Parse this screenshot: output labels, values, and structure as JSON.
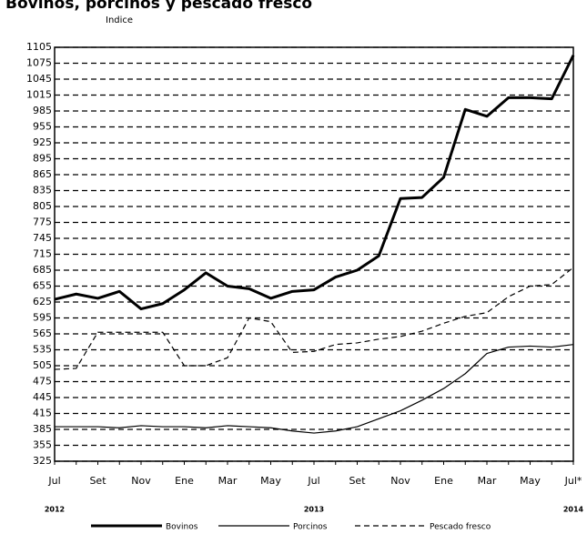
{
  "chart_data": {
    "type": "line",
    "title": "Bovinos, porcinos y pescado fresco",
    "y_label": "Indice",
    "categories": [
      "Jul",
      null,
      "Set",
      null,
      "Nov",
      null,
      "Ene",
      null,
      "Mar",
      null,
      "May",
      null,
      "Jul",
      null,
      "Set",
      null,
      "Nov",
      null,
      "Ene",
      null,
      "Mar",
      null,
      "May",
      null,
      "Jul*"
    ],
    "years": [
      "2012",
      null,
      null,
      null,
      null,
      null,
      null,
      null,
      null,
      null,
      null,
      null,
      "2013",
      null,
      null,
      null,
      null,
      null,
      null,
      null,
      null,
      null,
      null,
      null,
      "2014"
    ],
    "series": [
      {
        "name": "Bovinos",
        "color": "#000000",
        "width": 3,
        "dash": false,
        "values": [
          630,
          640,
          632,
          645,
          612,
          622,
          648,
          680,
          655,
          650,
          632,
          645,
          648,
          672,
          685,
          712,
          820,
          822,
          860,
          988,
          975,
          1010,
          1010,
          1008,
          1090
        ]
      },
      {
        "name": "Porcinos",
        "color": "#000000",
        "width": 1.2,
        "dash": false,
        "values": [
          390,
          390,
          390,
          388,
          392,
          390,
          390,
          388,
          392,
          390,
          388,
          382,
          378,
          382,
          390,
          405,
          420,
          440,
          462,
          490,
          528,
          540,
          542,
          540,
          545
        ]
      },
      {
        "name": "Pescado fresco",
        "color": "#000000",
        "width": 1.2,
        "dash": true,
        "values": [
          498,
          500,
          568,
          568,
          568,
          568,
          505,
          505,
          520,
          595,
          588,
          530,
          532,
          545,
          548,
          555,
          560,
          570,
          585,
          598,
          605,
          635,
          655,
          658,
          690
        ]
      }
    ],
    "ylim": [
      325,
      1105
    ],
    "yticks": [
      325,
      355,
      385,
      415,
      445,
      475,
      505,
      535,
      565,
      595,
      625,
      655,
      685,
      715,
      745,
      775,
      805,
      835,
      865,
      895,
      925,
      955,
      985,
      1015,
      1045,
      1075,
      1105
    ],
    "grid": true
  }
}
